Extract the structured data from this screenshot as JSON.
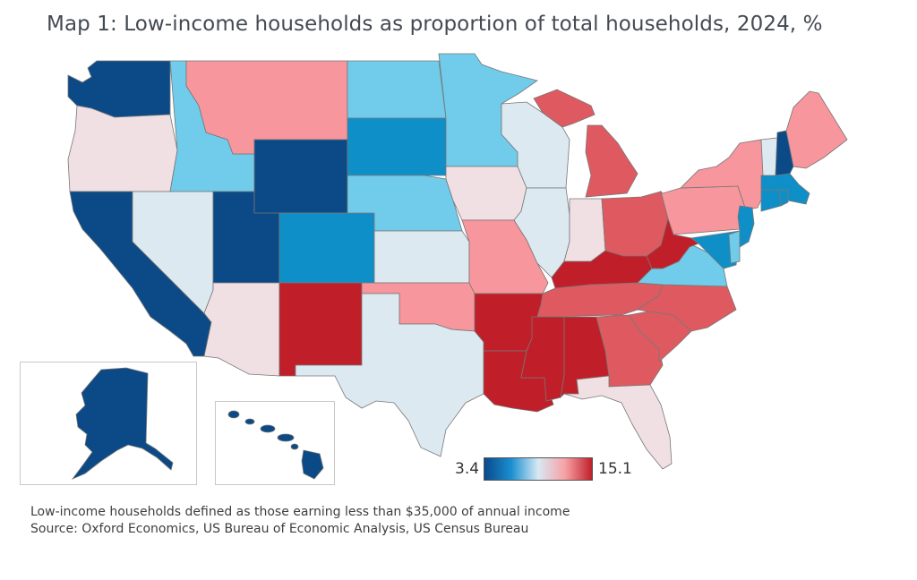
{
  "title": "Map 1: Low-income households as proportion of total households, 2024, %",
  "legend": {
    "min_label": "3.4",
    "max_label": "15.1",
    "colors": [
      "#0a4a8c",
      "#1b8fd0",
      "#d7e9f3",
      "#f7a1a5",
      "#c0202a"
    ]
  },
  "notes": {
    "definition": "Low-income households defined as those earning less than $35,000 of annual income",
    "source": "Source: Oxford Economics, US Bureau of Economic Analysis, US Census Bureau"
  },
  "palette": {
    "dark_blue": "#0b4a86",
    "mid_blue": "#0f8fc8",
    "light_blue": "#70ccea",
    "pale_blue": "#dde9f0",
    "pale_pink": "#f0e0e4",
    "pink": "#f7969c",
    "medium_red": "#df5a60",
    "dark_red": "#c01f29"
  },
  "states": {
    "WA": "dark_blue",
    "OR": "pale_pink",
    "CA": "dark_blue",
    "ID": "light_blue",
    "NV": "pale_blue",
    "UT": "dark_blue",
    "AZ": "pale_pink",
    "MT": "pink",
    "WY": "dark_blue",
    "CO": "mid_blue",
    "NM": "dark_red",
    "ND": "light_blue",
    "SD": "mid_blue",
    "NE": "light_blue",
    "KS": "pale_blue",
    "OK": "pink",
    "TX": "pale_blue",
    "MN": "light_blue",
    "IA": "pale_pink",
    "MO": "pink",
    "AR": "dark_red",
    "LA": "dark_red",
    "WI": "pale_blue",
    "IL": "pale_blue",
    "MI": "medium_red",
    "IN": "pale_pink",
    "OH": "medium_red",
    "KY": "dark_red",
    "TN": "medium_red",
    "MS": "dark_red",
    "AL": "dark_red",
    "GA": "medium_red",
    "FL": "pale_pink",
    "SC": "medium_red",
    "NC": "medium_red",
    "VA": "light_blue",
    "WV": "dark_red",
    "MD": "mid_blue",
    "DE": "light_blue",
    "NJ": "mid_blue",
    "PA": "pink",
    "NY": "pink",
    "VT": "pale_blue",
    "NH": "dark_blue",
    "ME": "pink",
    "MA": "mid_blue",
    "CT": "mid_blue",
    "RI": "mid_blue",
    "AK": "dark_blue",
    "HI": "dark_blue"
  }
}
